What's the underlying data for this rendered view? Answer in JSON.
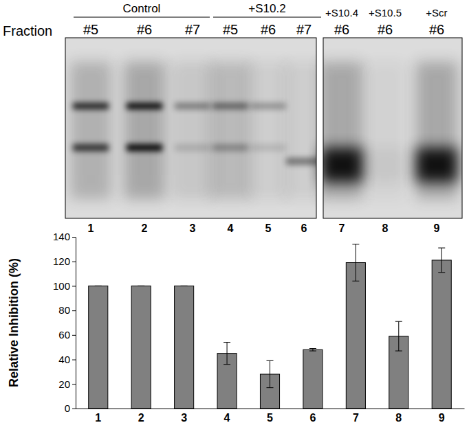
{
  "chart_data": {
    "type": "bar",
    "categories": [
      "1",
      "2",
      "3",
      "4",
      "5",
      "6",
      "7",
      "8",
      "9"
    ],
    "values": [
      100,
      100,
      100,
      45,
      28,
      48,
      119,
      59,
      121
    ],
    "errors": [
      0,
      0,
      0,
      9,
      11,
      1,
      15,
      12,
      10
    ],
    "color": "#808080",
    "y_label": "Relative Inhibition (%)",
    "ylim": [
      0,
      140
    ],
    "yticks": [
      0,
      20,
      40,
      60,
      80,
      100,
      120,
      140
    ],
    "grid": false
  },
  "gel": {
    "row_label": "Fraction",
    "groups": [
      {
        "label": "Control",
        "fractions": [
          "#5",
          "#6",
          "#7"
        ]
      },
      {
        "label": "+S10.2",
        "fractions": [
          "#5",
          "#6",
          "#7"
        ]
      },
      {
        "label": "+S10.4",
        "fractions": [
          "#6"
        ]
      },
      {
        "label": "+S10.5",
        "fractions": [
          "#6"
        ]
      },
      {
        "label": "+Scr",
        "fractions": [
          "#6"
        ]
      }
    ],
    "lanes": [
      "1",
      "2",
      "3",
      "4",
      "5",
      "6",
      "7",
      "8",
      "9"
    ]
  }
}
